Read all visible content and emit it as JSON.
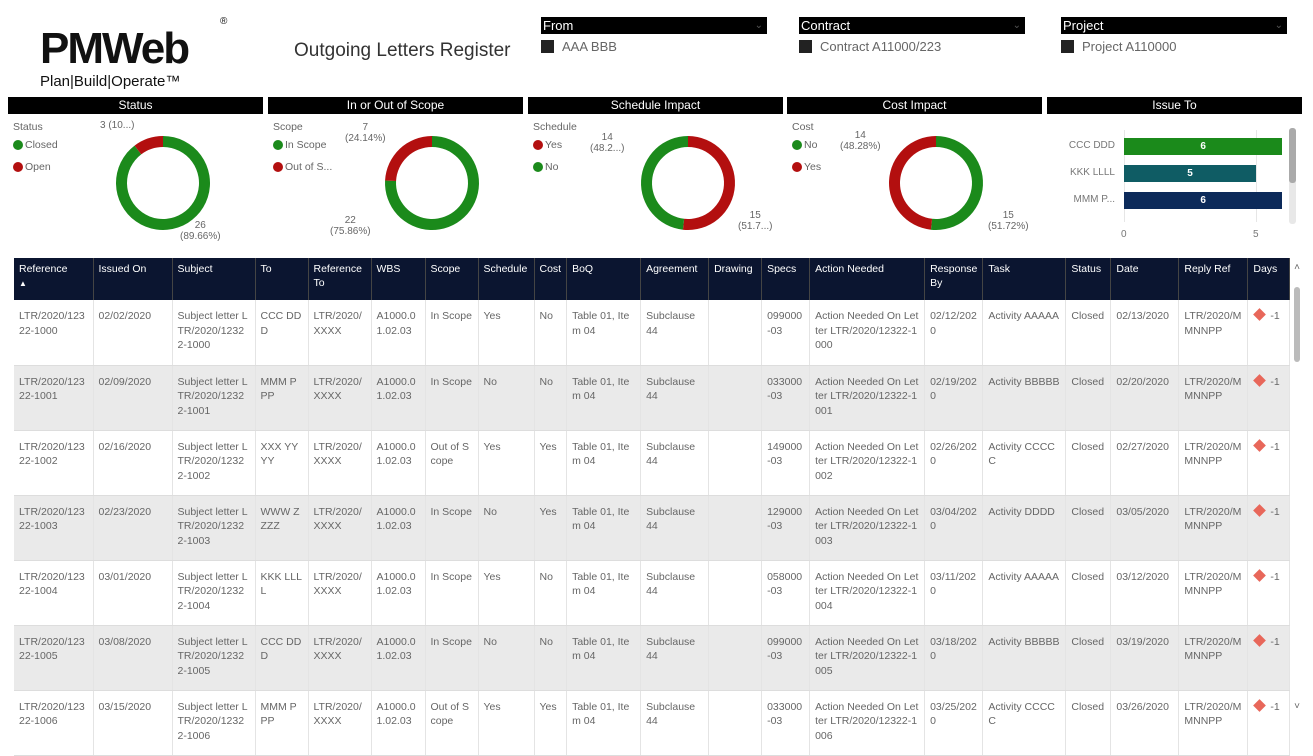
{
  "header": {
    "logo_text": "PMWeb",
    "logo_tagline": "Plan|Build|Operate™",
    "logo_reg": "®",
    "title": "Outgoing Letters Register"
  },
  "slicers": [
    {
      "label": "From",
      "value": "AAA BBB"
    },
    {
      "label": "Contract",
      "value": "Contract A11000/223"
    },
    {
      "label": "Project",
      "value": "Project A110000"
    }
  ],
  "colors": {
    "green": "#1b8a1b",
    "red": "#b30f0f",
    "teal": "#0f5c64",
    "navy": "#0c2a5a",
    "header_bg": "#0b1530",
    "diamond": "#e8675a"
  },
  "chart_data": [
    {
      "type": "pie",
      "title": "Status",
      "legend_title": "Status",
      "labels": [
        "Closed",
        "Open"
      ],
      "values": [
        26,
        3
      ],
      "data_labels": [
        "26\n(89.66%)",
        "3 (10...)"
      ],
      "colors": [
        "#1b8a1b",
        "#b30f0f"
      ]
    },
    {
      "type": "pie",
      "title": "In or Out of Scope",
      "legend_title": "Scope",
      "labels": [
        "In Scope",
        "Out of S..."
      ],
      "values": [
        22,
        7
      ],
      "data_labels": [
        "22\n(75.86%)",
        "7\n(24.14%)"
      ],
      "colors": [
        "#1b8a1b",
        "#b30f0f"
      ]
    },
    {
      "type": "pie",
      "title": "Schedule Impact",
      "legend_title": "Schedule",
      "labels": [
        "Yes",
        "No"
      ],
      "values": [
        15,
        14
      ],
      "data_labels": [
        "15\n(51.7...)",
        "14\n(48.2...)"
      ],
      "colors": [
        "#b30f0f",
        "#1b8a1b"
      ]
    },
    {
      "type": "pie",
      "title": "Cost Impact",
      "legend_title": "Cost",
      "labels": [
        "No",
        "Yes"
      ],
      "values": [
        15,
        14
      ],
      "data_labels": [
        "15\n(51.72%)",
        "14\n(48.28%)"
      ],
      "colors": [
        "#1b8a1b",
        "#b30f0f"
      ]
    },
    {
      "type": "bar",
      "title": "Issue To",
      "categories": [
        "CCC DDD",
        "KKK LLLL",
        "MMM P..."
      ],
      "values": [
        6,
        5,
        6
      ],
      "colors": [
        "#1b8a1b",
        "#0f5c64",
        "#0c2a5a"
      ],
      "xticks": [
        "0",
        "5"
      ],
      "xlim": [
        0,
        6.2
      ]
    }
  ],
  "table": {
    "columns": [
      "Reference",
      "Issued On",
      "Subject",
      "To",
      "Reference To",
      "WBS",
      "Scope",
      "Schedule",
      "Cost",
      "BoQ",
      "Agreement",
      "Drawing",
      "Specs",
      "Action Needed",
      "Response By",
      "Task",
      "Status",
      "Date",
      "Reply Ref",
      "Days"
    ],
    "sort_indicator": "▲",
    "rows": [
      [
        "LTR/2020/12322-1000",
        "02/02/2020",
        "Subject letter LTR/2020/12322-1000",
        "CCC DDD",
        "LTR/2020/XXXX",
        "A1000.01.02.03",
        "In Scope",
        "Yes",
        "No",
        "Table 01, Item 04",
        "Subclause 44",
        "",
        "099000-03",
        "Action Needed On Letter LTR/2020/12322-1000",
        "02/12/2020",
        "Activity AAAAA",
        "Closed",
        "02/13/2020",
        "LTR/2020/MMNNPP",
        "-1"
      ],
      [
        "LTR/2020/12322-1001",
        "02/09/2020",
        "Subject letter LTR/2020/12322-1001",
        "MMM PPP",
        "LTR/2020/XXXX",
        "A1000.01.02.03",
        "In Scope",
        "No",
        "No",
        "Table 01, Item 04",
        "Subclause 44",
        "",
        "033000-03",
        "Action Needed On Letter LTR/2020/12322-1001",
        "02/19/2020",
        "Activity BBBBB",
        "Closed",
        "02/20/2020",
        "LTR/2020/MMNNPP",
        "-1"
      ],
      [
        "LTR/2020/12322-1002",
        "02/16/2020",
        "Subject letter LTR/2020/12322-1002",
        "XXX YYYY",
        "LTR/2020/XXXX",
        "A1000.01.02.03",
        "Out of Scope",
        "Yes",
        "Yes",
        "Table 01, Item 04",
        "Subclause 44",
        "",
        "149000-03",
        "Action Needed On Letter LTR/2020/12322-1002",
        "02/26/2020",
        "Activity CCCCC",
        "Closed",
        "02/27/2020",
        "LTR/2020/MMNNPP",
        "-1"
      ],
      [
        "LTR/2020/12322-1003",
        "02/23/2020",
        "Subject letter LTR/2020/12322-1003",
        "WWW ZZZZ",
        "LTR/2020/XXXX",
        "A1000.01.02.03",
        "In Scope",
        "No",
        "Yes",
        "Table 01, Item 04",
        "Subclause 44",
        "",
        "129000-03",
        "Action Needed On Letter LTR/2020/12322-1003",
        "03/04/2020",
        "Activity DDDD",
        "Closed",
        "03/05/2020",
        "LTR/2020/MMNNPP",
        "-1"
      ],
      [
        "LTR/2020/12322-1004",
        "03/01/2020",
        "Subject letter LTR/2020/12322-1004",
        "KKK LLLL",
        "LTR/2020/XXXX",
        "A1000.01.02.03",
        "In Scope",
        "Yes",
        "No",
        "Table 01, Item 04",
        "Subclause 44",
        "",
        "058000-03",
        "Action Needed On Letter LTR/2020/12322-1004",
        "03/11/2020",
        "Activity AAAAA",
        "Closed",
        "03/12/2020",
        "LTR/2020/MMNNPP",
        "-1"
      ],
      [
        "LTR/2020/12322-1005",
        "03/08/2020",
        "Subject letter LTR/2020/12322-1005",
        "CCC DDD",
        "LTR/2020/XXXX",
        "A1000.01.02.03",
        "In Scope",
        "No",
        "No",
        "Table 01, Item 04",
        "Subclause 44",
        "",
        "099000-03",
        "Action Needed On Letter LTR/2020/12322-1005",
        "03/18/2020",
        "Activity BBBBB",
        "Closed",
        "03/19/2020",
        "LTR/2020/MMNNPP",
        "-1"
      ],
      [
        "LTR/2020/12322-1006",
        "03/15/2020",
        "Subject letter LTR/2020/12322-1006",
        "MMM PPP",
        "LTR/2020/XXXX",
        "A1000.01.02.03",
        "Out of Scope",
        "Yes",
        "Yes",
        "Table 01, Item 04",
        "Subclause 44",
        "",
        "033000-03",
        "Action Needed On Letter LTR/2020/12322-1006",
        "03/25/2020",
        "Activity CCCCC",
        "Closed",
        "03/26/2020",
        "LTR/2020/MMNNPP",
        "-1"
      ]
    ]
  }
}
